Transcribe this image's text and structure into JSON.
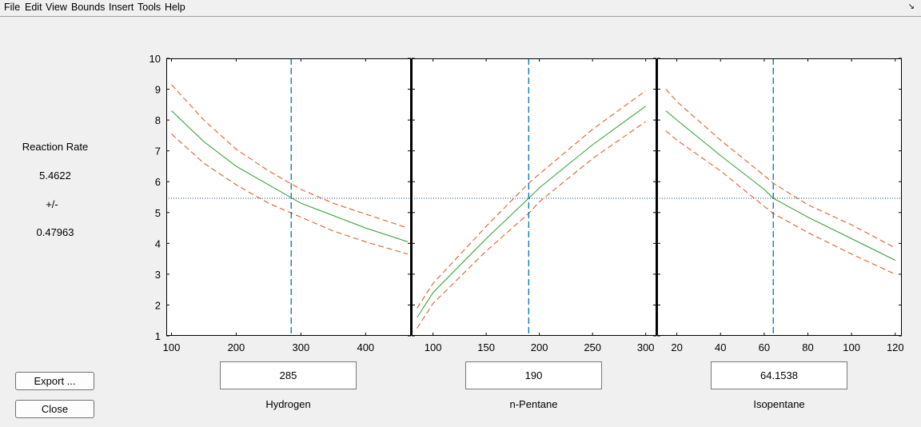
{
  "menu": [
    "File",
    "Edit",
    "View",
    "Bounds",
    "Insert",
    "Tools",
    "Help"
  ],
  "response": {
    "label": "Reaction Rate",
    "value": "5.4622",
    "pm": "+/-",
    "ci": "0.47963"
  },
  "buttons": {
    "export": "Export ...",
    "close": "Close"
  },
  "yaxis": {
    "min": 1,
    "max": 10,
    "ticks": [
      "1",
      "2",
      "3",
      "4",
      "5",
      "6",
      "7",
      "8",
      "9",
      "10"
    ]
  },
  "factors": [
    {
      "name": "Hydrogen",
      "value": "285",
      "xmin": 92,
      "xmax": 470,
      "current": 285,
      "ticks": [
        {
          "v": 100,
          "label": "100"
        },
        {
          "v": 200,
          "label": "200"
        },
        {
          "v": 300,
          "label": "300"
        },
        {
          "v": 400,
          "label": "400"
        }
      ]
    },
    {
      "name": "n-Pentane",
      "value": "190",
      "xmin": 80,
      "xmax": 310,
      "current": 190,
      "ticks": [
        {
          "v": 100,
          "label": "100"
        },
        {
          "v": 150,
          "label": "150"
        },
        {
          "v": 200,
          "label": "200"
        },
        {
          "v": 250,
          "label": "250"
        },
        {
          "v": 300,
          "label": "300"
        }
      ]
    },
    {
      "name": "Isopentane",
      "value": "64.1538",
      "xmin": 11,
      "xmax": 123,
      "current": 64.1538,
      "ticks": [
        {
          "v": 20,
          "label": "20"
        },
        {
          "v": 40,
          "label": "40"
        },
        {
          "v": 60,
          "label": "60"
        },
        {
          "v": 80,
          "label": "80"
        },
        {
          "v": 100,
          "label": "100"
        },
        {
          "v": 120,
          "label": "120"
        }
      ]
    }
  ],
  "colors": {
    "fit": "#2ca02c",
    "bounds": "#d95319",
    "crosshair_x": "#0072bd",
    "crosshair_y": "#0e4c8a"
  },
  "chart_data": [
    {
      "type": "line",
      "xlabel": "Hydrogen",
      "ylabel": "Reaction Rate",
      "ylim": [
        1,
        10
      ],
      "xlim": [
        92,
        470
      ],
      "series": [
        {
          "x": [
            100,
            150,
            200,
            250,
            300,
            350,
            400,
            465
          ],
          "values": [
            8.3,
            7.3,
            6.5,
            5.9,
            5.3,
            4.9,
            4.5,
            4.05
          ]
        },
        {
          "x": [
            100,
            150,
            200,
            250,
            300,
            350,
            400,
            465
          ],
          "values": [
            9.15,
            8.0,
            7.05,
            6.35,
            5.75,
            5.3,
            4.95,
            4.5
          ]
        },
        {
          "x": [
            100,
            150,
            200,
            250,
            300,
            350,
            400,
            465
          ],
          "values": [
            7.55,
            6.6,
            5.9,
            5.3,
            4.85,
            4.4,
            4.05,
            3.65
          ]
        }
      ],
      "crosshair": {
        "x": 285,
        "y": 5.4622
      }
    },
    {
      "type": "line",
      "xlabel": "n-Pentane",
      "ylabel": "Reaction Rate",
      "ylim": [
        1,
        10
      ],
      "xlim": [
        80,
        310
      ],
      "series": [
        {
          "x": [
            85,
            100,
            150,
            190,
            200,
            250,
            300
          ],
          "values": [
            1.6,
            2.4,
            4.15,
            5.46,
            5.8,
            7.2,
            8.45
          ]
        },
        {
          "x": [
            85,
            100,
            150,
            190,
            200,
            250,
            300
          ],
          "values": [
            1.9,
            2.7,
            4.55,
            5.95,
            6.25,
            7.7,
            8.95
          ]
        },
        {
          "x": [
            85,
            100,
            150,
            190,
            200,
            250,
            300
          ],
          "values": [
            1.25,
            2.05,
            3.75,
            4.97,
            5.35,
            6.75,
            7.95
          ]
        }
      ],
      "crosshair": {
        "x": 190,
        "y": 5.4622
      }
    },
    {
      "type": "line",
      "xlabel": "Isopentane",
      "ylabel": "Reaction Rate",
      "ylim": [
        1,
        10
      ],
      "xlim": [
        11,
        123
      ],
      "series": [
        {
          "x": [
            15,
            20,
            40,
            60,
            64.1538,
            80,
            100,
            120
          ],
          "values": [
            8.3,
            8.0,
            6.85,
            5.75,
            5.46,
            4.85,
            4.15,
            3.45
          ]
        },
        {
          "x": [
            15,
            20,
            40,
            60,
            64.1538,
            80,
            100,
            120
          ],
          "values": [
            9.0,
            8.6,
            7.35,
            6.2,
            5.95,
            5.25,
            4.6,
            3.85
          ]
        },
        {
          "x": [
            15,
            20,
            40,
            60,
            64.1538,
            80,
            100,
            120
          ],
          "values": [
            7.65,
            7.35,
            6.35,
            5.2,
            4.97,
            4.35,
            3.65,
            3.0
          ]
        }
      ],
      "crosshair": {
        "x": 64.1538,
        "y": 5.4622
      }
    }
  ]
}
